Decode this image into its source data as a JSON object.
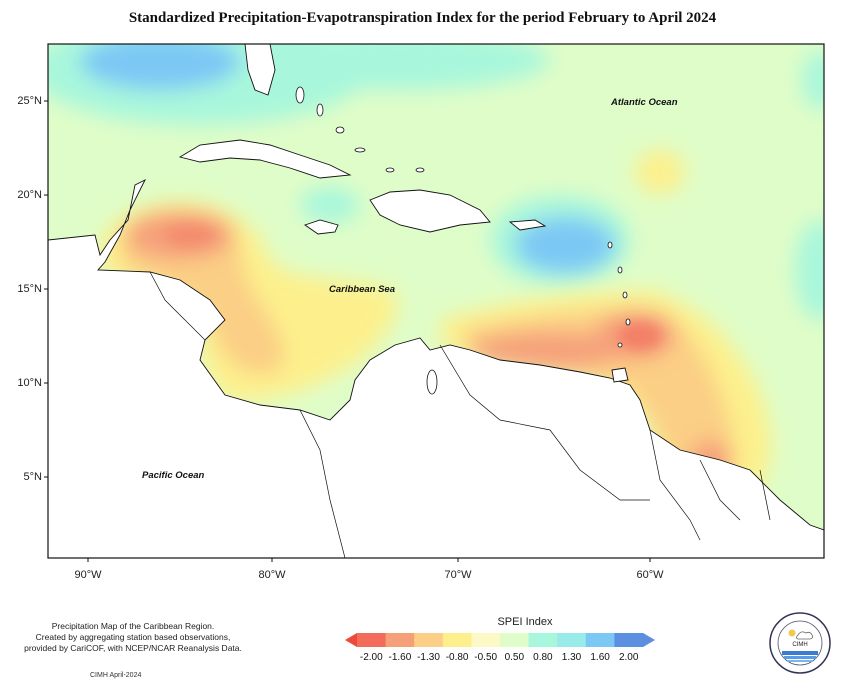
{
  "title": "Standardized Precipitation-Evapotranspiration Index for the period February to April 2024",
  "labels": {
    "atlantic": "Atlantic Ocean",
    "caribbean": "Caribbean Sea",
    "pacific": "Pacific Ocean"
  },
  "lat_ticks": [
    "25°N",
    "20°N",
    "15°N",
    "10°N",
    "5°N"
  ],
  "lon_ticks": [
    "90°W",
    "80°W",
    "70°W",
    "60°W"
  ],
  "footnote": {
    "line1": "Precipitation Map of the Caribbean Region.",
    "line2": "Created by aggregating station based observations,",
    "line3": "provided by CariCOF, with NCEP/NCAR Reanalysis Data.",
    "credit": "CIMH April-2024"
  },
  "legend": {
    "title": "SPEI Index",
    "ticks": [
      "-2.00",
      "-1.60",
      "-1.30",
      "-0.80",
      "-0.50",
      "0.50",
      "0.80",
      "1.30",
      "1.60",
      "2.00"
    ],
    "colors": [
      "#f26b5b",
      "#f6a07a",
      "#fbcf86",
      "#fdf08c",
      "#fdf9c6",
      "#dffdc8",
      "#a8f7dc",
      "#98ebe8",
      "#7cc8f5",
      "#5b8fe0"
    ]
  },
  "logo_text": "CIMH"
}
